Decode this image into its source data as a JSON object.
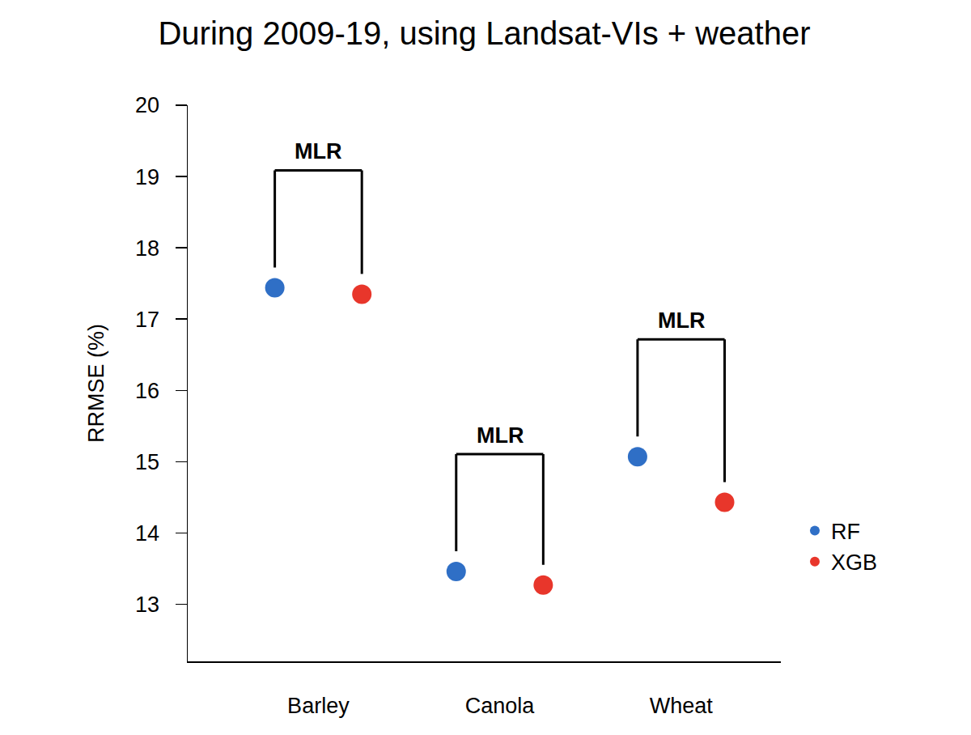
{
  "chart_data": {
    "type": "scatter",
    "title": "During 2009-19, using Landsat-VIs + weather",
    "y_label": "RRMSE (%)",
    "categories": [
      "Barley",
      "Canola",
      "Wheat"
    ],
    "series": [
      {
        "name": "RF",
        "color": "#2f6fc6",
        "values": [
          17.44,
          13.46,
          15.07
        ]
      },
      {
        "name": "XGB",
        "color": "#e8362b",
        "values": [
          17.35,
          13.27,
          14.43
        ]
      }
    ],
    "ylim": [
      12.2,
      20
    ],
    "yticks": [
      13,
      14,
      15,
      16,
      17,
      18,
      19,
      20
    ],
    "grid": false,
    "legend": "right",
    "marker": "circle",
    "annotations": [
      {
        "category": "Barley",
        "text": "MLR"
      },
      {
        "category": "Canola",
        "text": "MLR"
      },
      {
        "category": "Wheat",
        "text": "MLR"
      }
    ]
  }
}
